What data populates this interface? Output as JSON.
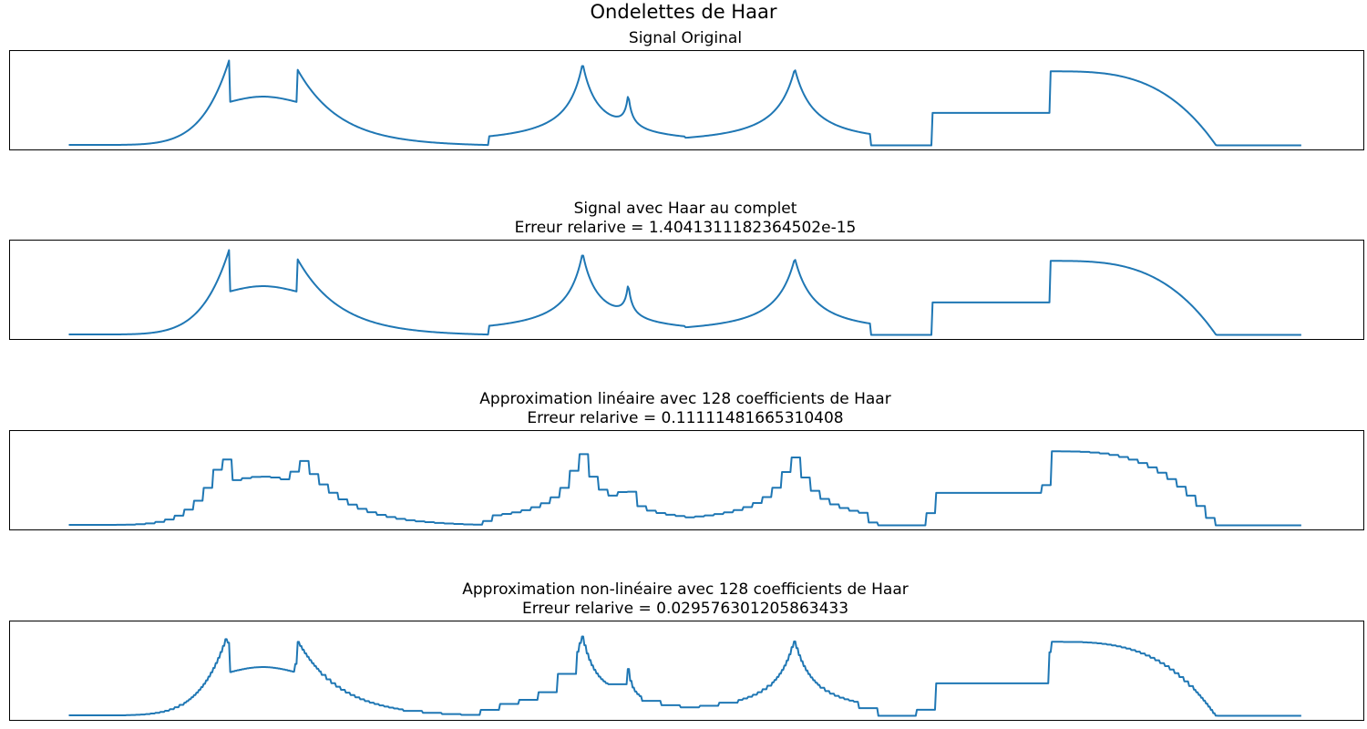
{
  "figure": {
    "title": "Ondelettes de Haar"
  },
  "chart_data": [
    {
      "type": "line",
      "title": "Signal Original",
      "subtitle": "",
      "signal": "full",
      "x_axis_visible": false,
      "y_axis_visible": false,
      "grid": false,
      "xlim": [
        0,
        2048
      ],
      "ylim": [
        -0.05,
        1.05
      ]
    },
    {
      "type": "line",
      "title": "Signal avec Haar au complet",
      "subtitle": "Erreur relarive = 1.4041311182364502e-15",
      "signal": "full",
      "x_axis_visible": false,
      "y_axis_visible": false,
      "grid": false,
      "xlim": [
        0,
        2048
      ],
      "ylim": [
        -0.05,
        1.05
      ]
    },
    {
      "type": "line",
      "title": "Approximation linéaire avec 128 coefficients de Haar",
      "subtitle": "Erreur relarive = 0.11111481665310408",
      "signal": "linear",
      "x_axis_visible": false,
      "y_axis_visible": false,
      "grid": false,
      "xlim": [
        0,
        2048
      ],
      "ylim": [
        -0.05,
        1.05
      ]
    },
    {
      "type": "line",
      "title": "Approximation non-linéaire avec 128 coefficients de Haar",
      "subtitle": "Erreur relarive = 0.029576301205863433",
      "signal": "nonlinear",
      "x_axis_visible": false,
      "y_axis_visible": false,
      "grid": false,
      "xlim": [
        0,
        2048
      ],
      "ylim": [
        -0.05,
        1.05
      ]
    }
  ],
  "colors": {
    "line": "#1f77b4",
    "frame": "#000000",
    "background": "#ffffff"
  }
}
